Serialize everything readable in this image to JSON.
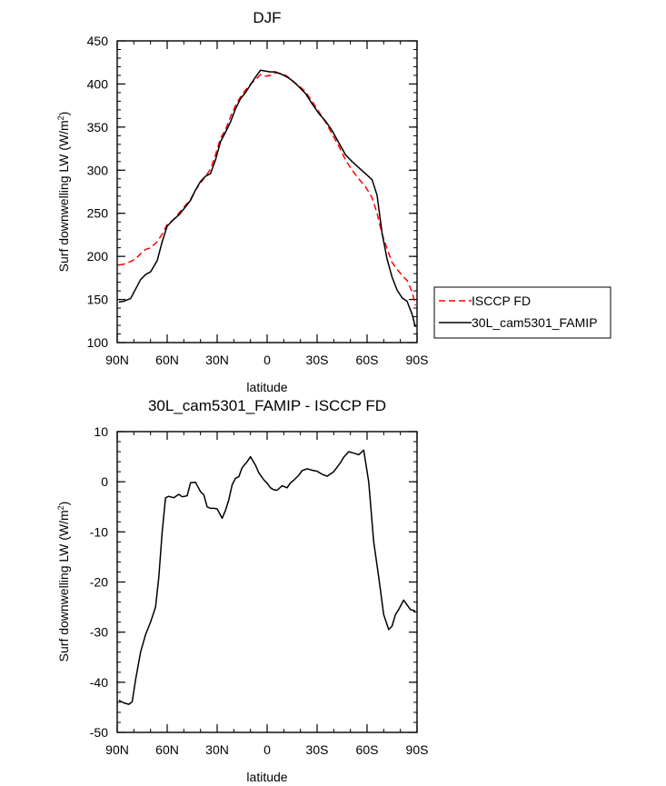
{
  "chart_data": [
    {
      "type": "line",
      "title": "DJF",
      "xlabel": "latitude",
      "ylabel": "Surf downwelling LW (W/m2)",
      "ylabel_main": "Surf downwelling LW (W/m",
      "ylabel_sup": "2",
      "ylabel_end": ")",
      "xlim": [
        -90,
        90
      ],
      "ylim": [
        100,
        450
      ],
      "xticks": [
        -90,
        -60,
        -30,
        0,
        30,
        60,
        90
      ],
      "xticklabels": [
        "90N",
        "60N",
        "30N",
        "0",
        "30S",
        "60S",
        "90S"
      ],
      "yticks": [
        100,
        150,
        200,
        250,
        300,
        350,
        400,
        450
      ],
      "yticklabels": [
        "100",
        "150",
        "200",
        "250",
        "300",
        "350",
        "400",
        "450"
      ],
      "legend": [
        {
          "label": "ISCCP FD",
          "color": "#ff0000",
          "dashed": true
        },
        {
          "label": "30L_cam5301_FAMIP",
          "color": "#000000",
          "dashed": false
        }
      ],
      "series": [
        {
          "name": "ISCCP FD",
          "color": "#ff0000",
          "dashed": true,
          "x": [
            -89,
            -86,
            -82,
            -79,
            -76,
            -73,
            -70,
            -66,
            -63,
            -60,
            -56,
            -53,
            -50,
            -46,
            -43,
            -40,
            -37,
            -34,
            -31,
            -28,
            -25,
            -22,
            -19,
            -16,
            -13,
            -10,
            -7,
            -4,
            -1,
            2,
            5,
            9,
            12,
            15,
            19,
            23,
            27,
            31,
            35,
            39,
            43,
            47,
            51,
            55,
            59,
            63,
            66,
            69,
            72,
            75,
            78,
            81,
            84,
            87,
            89
          ],
          "y": [
            190,
            191,
            194,
            197,
            203,
            208,
            210,
            217,
            226,
            237,
            243,
            250,
            257,
            266,
            277,
            285,
            293,
            301,
            318,
            337,
            347,
            362,
            375,
            385,
            393,
            400,
            405,
            411,
            409,
            410,
            413,
            412,
            409,
            404,
            398,
            391,
            380,
            368,
            356,
            342,
            328,
            312,
            300,
            290,
            281,
            268,
            250,
            226,
            209,
            193,
            185,
            178,
            172,
            159,
            143
          ]
        },
        {
          "name": "30L_cam5301_FAMIP",
          "color": "#000000",
          "dashed": false,
          "x": [
            -89,
            -86,
            -82,
            -79,
            -76,
            -73,
            -70,
            -66,
            -63,
            -60,
            -56,
            -53,
            -50,
            -46,
            -43,
            -40,
            -37,
            -34,
            -31,
            -28,
            -25,
            -22,
            -19,
            -16,
            -13,
            -10,
            -7,
            -4,
            -1,
            2,
            5,
            9,
            12,
            15,
            19,
            23,
            27,
            31,
            35,
            39,
            43,
            47,
            51,
            55,
            59,
            63,
            66,
            69,
            72,
            75,
            78,
            81,
            84,
            87,
            89
          ],
          "y": [
            147,
            148,
            151,
            162,
            173,
            179,
            182,
            195,
            217,
            235,
            243,
            248,
            255,
            265,
            277,
            287,
            293,
            296,
            312,
            333,
            344,
            356,
            371,
            383,
            390,
            399,
            408,
            416,
            415,
            414,
            414,
            411,
            408,
            404,
            397,
            389,
            377,
            366,
            357,
            346,
            332,
            318,
            310,
            303,
            296,
            289,
            271,
            227,
            197,
            176,
            161,
            152,
            148,
            133,
            118
          ]
        }
      ]
    },
    {
      "type": "line",
      "title": "30L_cam5301_FAMIP - ISCCP FD",
      "xlabel": "latitude",
      "ylabel": "Surf downwelling LW (W/m2)",
      "ylabel_main": "Surf downwelling LW (W/m",
      "ylabel_sup": "2",
      "ylabel_end": ")",
      "xlim": [
        -90,
        90
      ],
      "ylim": [
        -50,
        10
      ],
      "xticks": [
        -90,
        -60,
        -30,
        0,
        30,
        60,
        90
      ],
      "xticklabels": [
        "90N",
        "60N",
        "30N",
        "0",
        "30S",
        "60S",
        "90S"
      ],
      "yticks": [
        -50,
        -40,
        -30,
        -20,
        -10,
        0,
        10
      ],
      "yticklabels": [
        "-50",
        "-40",
        "-30",
        "-20",
        "-10",
        "0",
        "10"
      ],
      "series": [
        {
          "name": "30L_cam5301_FAMIP - ISCCP FD",
          "color": "#000000",
          "dashed": false,
          "x": [
            -89,
            -86,
            -83,
            -81,
            -79,
            -76,
            -73,
            -70,
            -67,
            -65,
            -63,
            -61,
            -59,
            -56,
            -53,
            -51,
            -48,
            -46,
            -43,
            -40,
            -38,
            -36,
            -34,
            -32,
            -30,
            -27,
            -25,
            -23,
            -21,
            -19,
            -17,
            -15,
            -12,
            -10,
            -7,
            -5,
            -2,
            0,
            2,
            4,
            6,
            9,
            12,
            14,
            16,
            19,
            21,
            24,
            27,
            30,
            33,
            36,
            40,
            44,
            46,
            49,
            52,
            55,
            58,
            61,
            64,
            67,
            70,
            73,
            75,
            77,
            79,
            82,
            86,
            89
          ],
          "y": [
            -43.6,
            -44.1,
            -44.4,
            -43.9,
            -39.5,
            -34.0,
            -30.5,
            -28.0,
            -25.0,
            -19.0,
            -10.0,
            -3.2,
            -2.9,
            -3.2,
            -2.5,
            -3.0,
            -2.8,
            -0.2,
            -0.1,
            -2.0,
            -2.6,
            -5.0,
            -5.3,
            -5.3,
            -5.4,
            -7.3,
            -5.7,
            -3.6,
            -0.6,
            0.7,
            1.0,
            2.8,
            4.0,
            5.0,
            3.3,
            1.8,
            0.4,
            -0.3,
            -1.2,
            -1.6,
            -1.7,
            -0.8,
            -1.2,
            -0.2,
            0.3,
            1.3,
            2.2,
            2.6,
            2.3,
            2.1,
            1.5,
            1.1,
            2.0,
            3.8,
            4.9,
            6.0,
            5.7,
            5.4,
            6.3,
            0.0,
            -12.0,
            -19.0,
            -26.5,
            -29.5,
            -28.8,
            -26.5,
            -25.5,
            -23.6,
            -25.5,
            -25.8
          ]
        }
      ]
    }
  ]
}
